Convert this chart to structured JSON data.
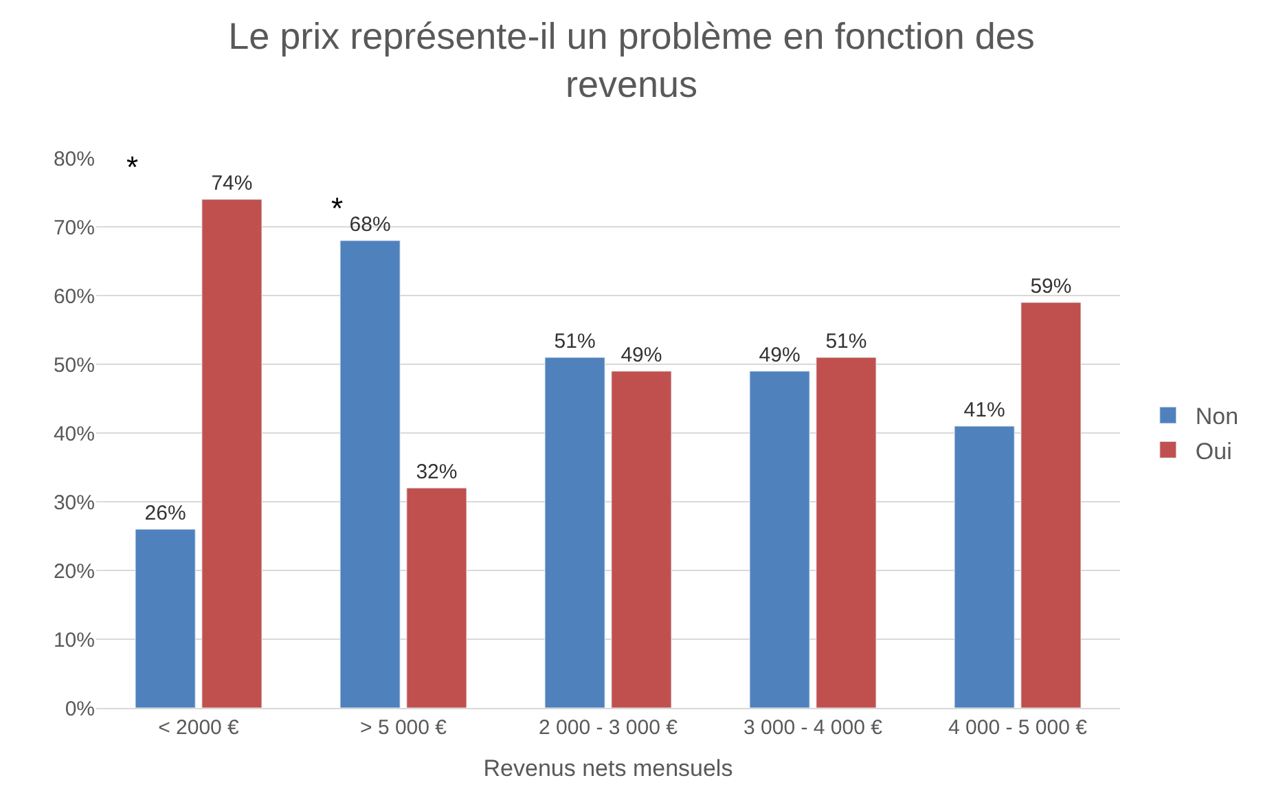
{
  "chart_data": {
    "type": "bar",
    "title": "Le prix représente-il un problème en fonction des revenus",
    "xlabel": "Revenus nets mensuels",
    "categories": [
      "< 2000 €",
      "> 5 000 €",
      "2 000 - 3 000 €",
      "3 000 - 4 000 €",
      "4 000 - 5 000 €"
    ],
    "series": [
      {
        "name": "Non",
        "color": "#4f81bd",
        "values": [
          26,
          68,
          51,
          49,
          41
        ],
        "value_labels": [
          "26%",
          "68%",
          "51%",
          "49%",
          "41%"
        ]
      },
      {
        "name": "Oui",
        "color": "#c0504d",
        "values": [
          74,
          32,
          49,
          51,
          59
        ],
        "value_labels": [
          "74%",
          "32%",
          "49%",
          "51%",
          "59%"
        ]
      }
    ],
    "ylim": [
      0,
      80
    ],
    "yticks": [
      {
        "value": 0,
        "label": "0%"
      },
      {
        "value": 10,
        "label": "10%"
      },
      {
        "value": 20,
        "label": "20%"
      },
      {
        "value": 30,
        "label": "30%"
      },
      {
        "value": 40,
        "label": "40%"
      },
      {
        "value": 50,
        "label": "50%"
      },
      {
        "value": 60,
        "label": "60%"
      },
      {
        "value": 70,
        "label": "70%"
      },
      {
        "value": 80,
        "label": "80%"
      }
    ],
    "annotations": [
      "*",
      "*"
    ],
    "grid": "y",
    "legend": "right"
  }
}
